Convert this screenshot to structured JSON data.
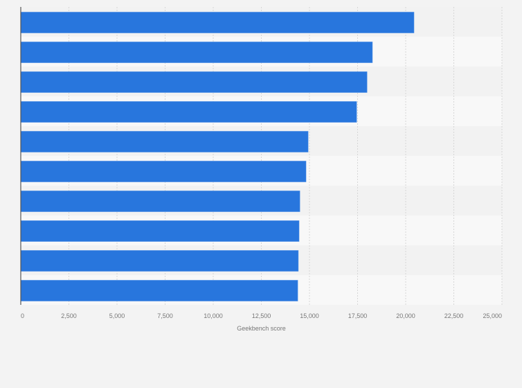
{
  "chart_data": {
    "type": "bar",
    "orientation": "horizontal",
    "categories": [
      "",
      "",
      "",
      "",
      "",
      "",
      "",
      "",
      "",
      ""
    ],
    "values": [
      20430,
      18270,
      17990,
      17450,
      14930,
      14820,
      14500,
      14460,
      14420,
      14390
    ],
    "title": "",
    "xlabel": "Geekbench score",
    "ylabel": "",
    "xlim": [
      0,
      25000
    ],
    "xticks": [
      0,
      2500,
      5000,
      7500,
      10000,
      12500,
      15000,
      17500,
      20000,
      22500,
      25000
    ],
    "xtick_labels": [
      "0",
      "2,500",
      "5,000",
      "7,500",
      "10,000",
      "12,500",
      "15,000",
      "17,500",
      "20,000",
      "22,500",
      "25,000"
    ],
    "grid": true,
    "bar_color": "#2876dd"
  }
}
